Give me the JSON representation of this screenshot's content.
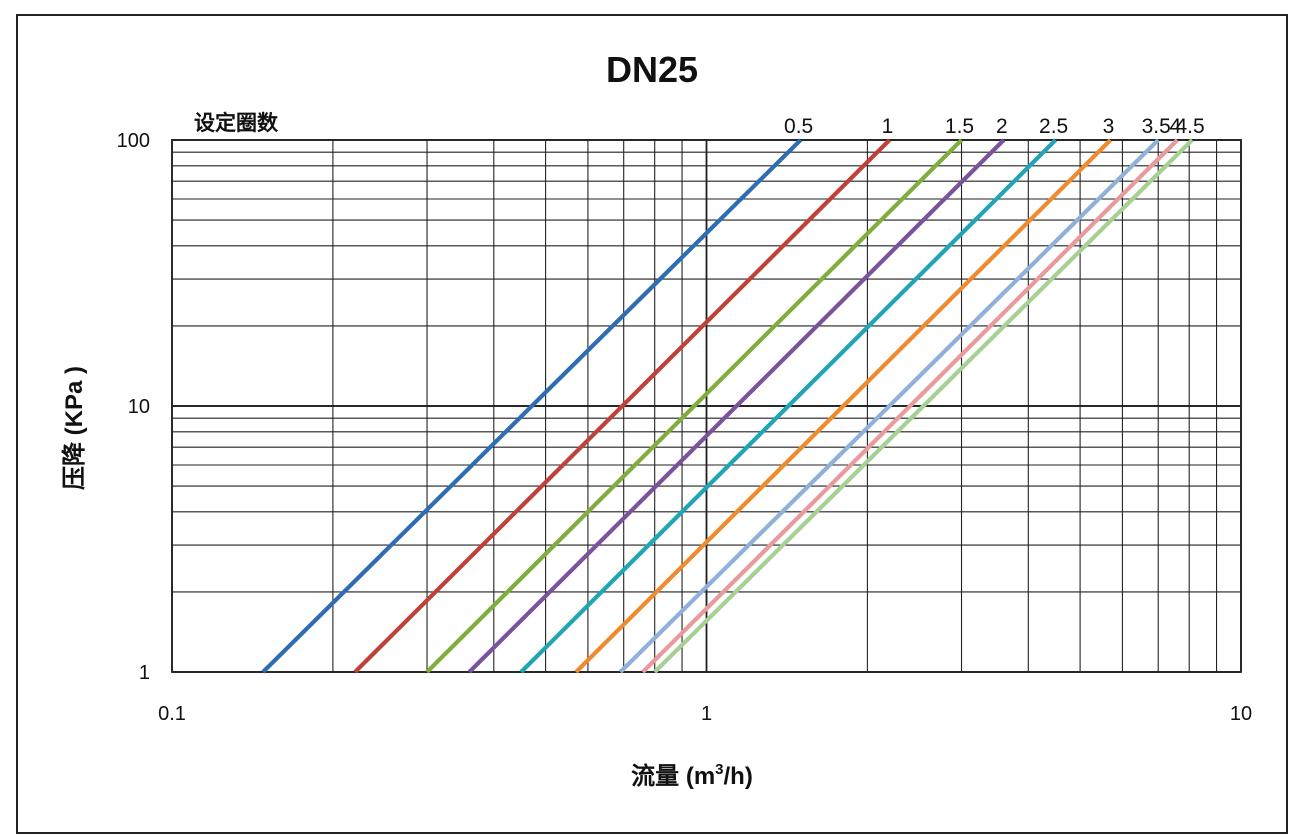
{
  "chart_data": {
    "type": "line",
    "title": "DN25",
    "xlabel": "流量 (m³/h)",
    "xlabel_main": "流量 (m",
    "xlabel_sup": "3",
    "xlabel_tail": "/h)",
    "ylabel": "压降 (KPa )",
    "legend_title": "设定圈数",
    "x_scale": "log",
    "y_scale": "log",
    "xlim": [
      0.1,
      10
    ],
    "ylim": [
      1,
      100
    ],
    "x_ticks": [
      "0.1",
      "1",
      "10"
    ],
    "y_ticks": [
      "1",
      "10",
      "100"
    ],
    "grid": true,
    "legend_placement": "top",
    "series": [
      {
        "name": "0.5",
        "color": "#2f6db3",
        "x": [
          0.148,
          1.5
        ],
        "y": [
          1,
          100
        ]
      },
      {
        "name": "1",
        "color": "#c0403a",
        "x": [
          0.22,
          2.2
        ],
        "y": [
          1,
          100
        ]
      },
      {
        "name": "1.5",
        "color": "#7fae3c",
        "x": [
          0.3,
          3.0
        ],
        "y": [
          1,
          100
        ]
      },
      {
        "name": "2",
        "color": "#7a539e",
        "x": [
          0.36,
          3.6
        ],
        "y": [
          1,
          100
        ]
      },
      {
        "name": "2.5",
        "color": "#20a4b8",
        "x": [
          0.45,
          4.5
        ],
        "y": [
          1,
          100
        ]
      },
      {
        "name": "3",
        "color": "#f08a2e",
        "x": [
          0.57,
          5.7
        ],
        "y": [
          1,
          100
        ]
      },
      {
        "name": "3.5",
        "color": "#8fb0d9",
        "x": [
          0.69,
          7.0
        ],
        "y": [
          1,
          100
        ]
      },
      {
        "name": "4",
        "color": "#e89a9c",
        "x": [
          0.76,
          7.6
        ],
        "y": [
          1,
          100
        ]
      },
      {
        "name": "4.5",
        "color": "#a6d094",
        "x": [
          0.8,
          8.1
        ],
        "y": [
          1,
          100
        ]
      }
    ]
  }
}
